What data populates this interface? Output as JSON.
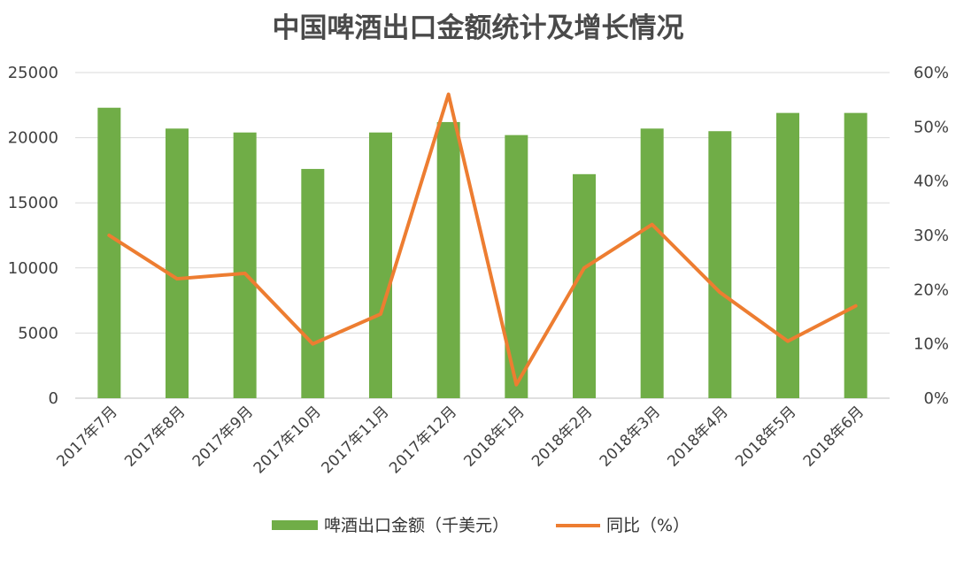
{
  "chart_data": {
    "type": "bar",
    "title": "中国啤酒出口金额统计及增长情况",
    "categories": [
      "2017年7月",
      "2017年8月",
      "2017年9月",
      "2017年10月",
      "2017年11月",
      "2017年12月",
      "2018年1月",
      "2018年2月",
      "2018年3月",
      "2018年4月",
      "2018年5月",
      "2018年6月"
    ],
    "series": [
      {
        "name": "啤酒出口金额（千美元）",
        "type": "bar",
        "axis": "left",
        "color": "#70ad47",
        "values": [
          22300,
          20700,
          20400,
          17600,
          20400,
          21200,
          20200,
          17200,
          20700,
          20500,
          21900,
          21900
        ]
      },
      {
        "name": "同比（%）",
        "type": "line",
        "axis": "right",
        "color": "#ed7d31",
        "values": [
          30,
          22,
          23,
          10,
          15.5,
          56,
          2.5,
          24,
          32,
          19.5,
          10.5,
          17
        ]
      }
    ],
    "y_left": {
      "ylim": [
        0,
        25000
      ],
      "ticks": [
        "0",
        "5000",
        "10000",
        "15000",
        "20000",
        "25000"
      ]
    },
    "y_right": {
      "ylim": [
        0,
        60
      ],
      "ticks": [
        "0%",
        "10%",
        "20%",
        "30%",
        "40%",
        "50%",
        "60%"
      ]
    },
    "grid": true,
    "legend_position": "bottom"
  }
}
